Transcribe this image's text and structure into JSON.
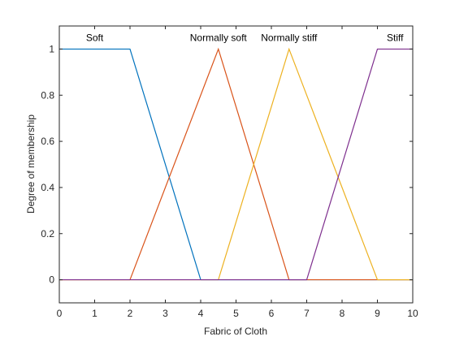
{
  "chart_data": {
    "type": "line",
    "xlabel": "Fabric of Cloth",
    "ylabel": "Degree of membership",
    "xlim": [
      0,
      10
    ],
    "ylim": [
      -0.1,
      1.1
    ],
    "xticks": [
      0,
      1,
      2,
      3,
      4,
      5,
      6,
      7,
      8,
      9,
      10
    ],
    "yticks": [
      0,
      0.2,
      0.4,
      0.6,
      0.8,
      1
    ],
    "grid": false,
    "legend": "none",
    "series": [
      {
        "name": "Soft",
        "color": "#0072BD",
        "points": [
          [
            0,
            1
          ],
          [
            2,
            1
          ],
          [
            4,
            0
          ],
          [
            10,
            0
          ]
        ],
        "label_at": [
          1,
          1
        ]
      },
      {
        "name": "Normally soft",
        "color": "#D95319",
        "points": [
          [
            0,
            0
          ],
          [
            2,
            0
          ],
          [
            4.5,
            1
          ],
          [
            6.5,
            0
          ],
          [
            10,
            0
          ]
        ],
        "label_at": [
          4.5,
          1
        ]
      },
      {
        "name": "Normally stiff",
        "color": "#EDB120",
        "points": [
          [
            0,
            0
          ],
          [
            4.5,
            0
          ],
          [
            6.5,
            1
          ],
          [
            9,
            0
          ],
          [
            10,
            0
          ]
        ],
        "label_at": [
          6.5,
          1
        ]
      },
      {
        "name": "Stiff",
        "color": "#7E2F8E",
        "points": [
          [
            0,
            0
          ],
          [
            7,
            0
          ],
          [
            9,
            1
          ],
          [
            10,
            1
          ]
        ],
        "label_at": [
          9.5,
          1
        ]
      }
    ]
  }
}
